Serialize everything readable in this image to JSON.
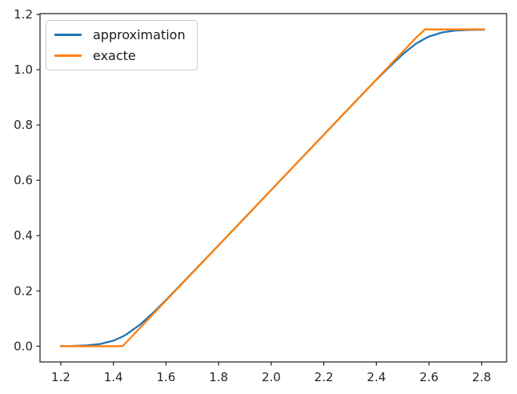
{
  "chart_data": {
    "type": "line",
    "title": "",
    "xlabel": "",
    "ylabel": "",
    "grid": false,
    "legend_position": "upper left",
    "xlim": [
      1.121,
      2.895
    ],
    "ylim": [
      -0.057,
      1.203
    ],
    "x_ticks": [
      1.2,
      1.4,
      1.6,
      1.8,
      2.0,
      2.2,
      2.4,
      2.6,
      2.8
    ],
    "x_tick_labels": [
      "1.2",
      "1.4",
      "1.6",
      "1.8",
      "2.0",
      "2.2",
      "2.4",
      "2.6",
      "2.8"
    ],
    "y_ticks": [
      0.0,
      0.2,
      0.4,
      0.6,
      0.8,
      1.0,
      1.2
    ],
    "y_tick_labels": [
      "0.0",
      "0.2",
      "0.4",
      "0.6",
      "0.8",
      "1.0",
      "1.2"
    ],
    "x": [
      1.2,
      1.25,
      1.3,
      1.35,
      1.4,
      1.435,
      1.45,
      1.5,
      1.55,
      1.6,
      1.7,
      1.8,
      1.9,
      2.0,
      2.1,
      2.2,
      2.3,
      2.4,
      2.45,
      2.5,
      2.55,
      2.585,
      2.6,
      2.65,
      2.7,
      2.75,
      2.81
    ],
    "series": [
      {
        "name": "approximation",
        "color": "#1f77b4",
        "values": [
          0.0,
          0.001,
          0.003,
          0.008,
          0.02,
          0.035,
          0.043,
          0.077,
          0.12,
          0.167,
          0.266,
          0.365,
          0.465,
          0.565,
          0.665,
          0.765,
          0.865,
          0.964,
          1.011,
          1.056,
          1.094,
          1.113,
          1.12,
          1.135,
          1.142,
          1.144,
          1.145
        ]
      },
      {
        "name": "exacte",
        "color": "#ff7f0e",
        "values": [
          0.0,
          0.0,
          0.0,
          0.0,
          0.0,
          0.0,
          0.015,
          0.065,
          0.115,
          0.165,
          0.265,
          0.365,
          0.465,
          0.565,
          0.665,
          0.765,
          0.865,
          0.965,
          1.015,
          1.065,
          1.115,
          1.146,
          1.146,
          1.146,
          1.146,
          1.146,
          1.146
        ]
      }
    ],
    "spine_color": "#2e2e2e",
    "plateau_value": 1.146
  }
}
